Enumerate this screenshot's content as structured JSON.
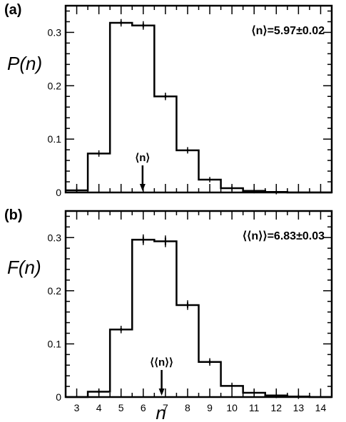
{
  "chart_data": [
    {
      "type": "histogram",
      "panel_label": "(a)",
      "ylabel": "P(n)",
      "x_min": 2.5,
      "x_max": 14.5,
      "ylim": [
        0,
        0.35
      ],
      "y_ticks": [
        0,
        0.1,
        0.2,
        0.3
      ],
      "y_tick_labels": [
        "0",
        "0.1",
        "0.2",
        "0.3"
      ],
      "x_tick_labels": [],
      "bins": [
        {
          "n": 3,
          "value": 0.004
        },
        {
          "n": 4,
          "value": 0.073
        },
        {
          "n": 5,
          "value": 0.318
        },
        {
          "n": 6,
          "value": 0.313
        },
        {
          "n": 7,
          "value": 0.18
        },
        {
          "n": 8,
          "value": 0.079
        },
        {
          "n": 9,
          "value": 0.024
        },
        {
          "n": 10,
          "value": 0.008
        },
        {
          "n": 11,
          "value": 0.003
        },
        {
          "n": 12,
          "value": 0.001
        },
        {
          "n": 13,
          "value": 0.0
        },
        {
          "n": 14,
          "value": 0.0
        }
      ],
      "errors": [
        0.001,
        0.002,
        0.003,
        0.004,
        0.003,
        0.002,
        0.001,
        0.001,
        0.0005,
        0.0005,
        0,
        0
      ],
      "annotation": {
        "text": "⟨n⟩=5.97±0.02",
        "position": "top-right"
      },
      "marker": {
        "label": "⟨n⟩",
        "x": 5.97
      }
    },
    {
      "type": "histogram",
      "panel_label": "(b)",
      "ylabel": "F(n)",
      "xlabel": "n",
      "x_min": 2.5,
      "x_max": 14.5,
      "ylim": [
        0,
        0.35
      ],
      "y_ticks": [
        0,
        0.1,
        0.2,
        0.3
      ],
      "y_tick_labels": [
        "0",
        "0.1",
        "0.2",
        "0.3"
      ],
      "x_tick_labels": [
        "3",
        "4",
        "5",
        "6",
        "7",
        "8",
        "9",
        "10",
        "11",
        "12",
        "13",
        "14"
      ],
      "bins": [
        {
          "n": 3,
          "value": 0.0
        },
        {
          "n": 4,
          "value": 0.01
        },
        {
          "n": 5,
          "value": 0.127
        },
        {
          "n": 6,
          "value": 0.296
        },
        {
          "n": 7,
          "value": 0.293
        },
        {
          "n": 8,
          "value": 0.173
        },
        {
          "n": 9,
          "value": 0.066
        },
        {
          "n": 10,
          "value": 0.021
        },
        {
          "n": 11,
          "value": 0.008
        },
        {
          "n": 12,
          "value": 0.003
        },
        {
          "n": 13,
          "value": 0.001
        },
        {
          "n": 14,
          "value": 0.0
        }
      ],
      "errors": [
        0,
        0.002,
        0.003,
        0.006,
        0.007,
        0.005,
        0.003,
        0.002,
        0.001,
        0.001,
        0.0005,
        0
      ],
      "annotation": {
        "text": "⟨⟨n⟩⟩=6.83±0.03",
        "position": "top-right"
      },
      "marker": {
        "label": "⟨⟨n⟩⟩",
        "x": 6.83
      }
    }
  ]
}
